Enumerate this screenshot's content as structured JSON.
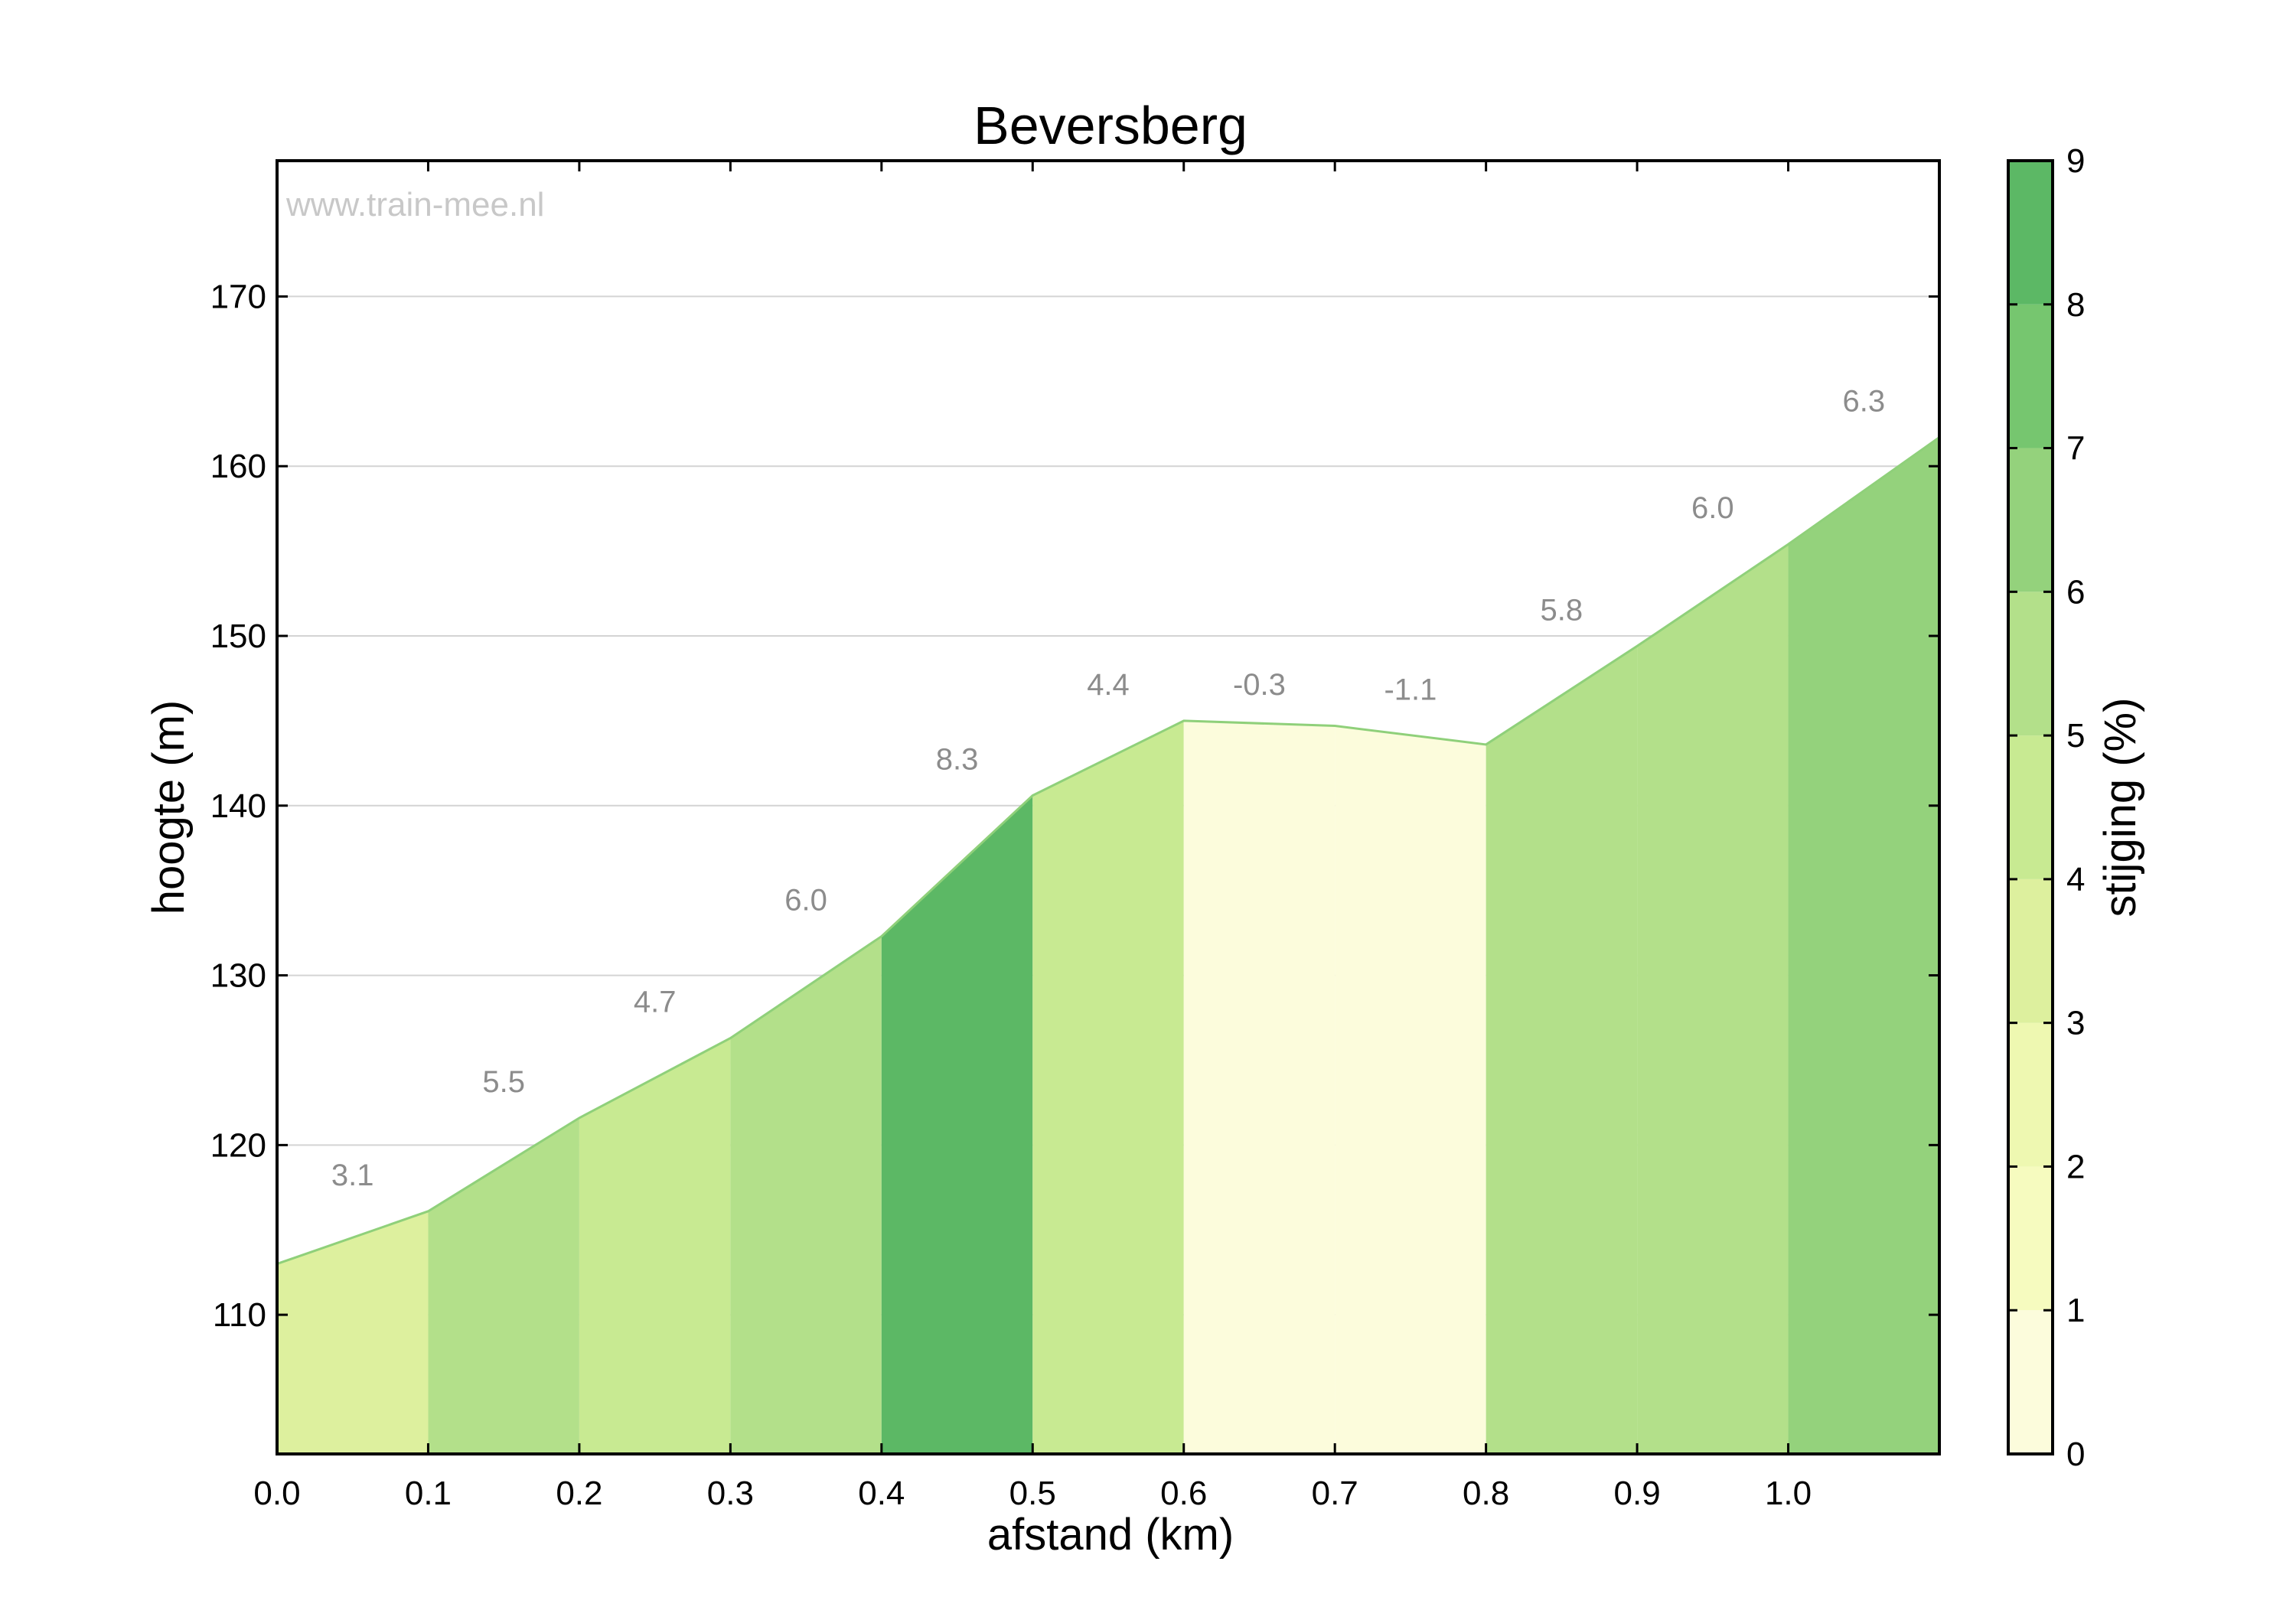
{
  "chart_data": {
    "type": "area",
    "title": "Beversberg",
    "watermark": "www.train-mee.nl",
    "xlabel": "afstand (km)",
    "ylabel": "hoogte (m)",
    "xlim": [
      0.0,
      1.1
    ],
    "ylim": [
      101.8,
      178
    ],
    "x_ticks": [
      "0.0",
      "0.1",
      "0.2",
      "0.3",
      "0.4",
      "0.5",
      "0.6",
      "0.7",
      "0.8",
      "0.9",
      "1.0"
    ],
    "y_ticks": [
      "110",
      "120",
      "130",
      "140",
      "150",
      "160",
      "170"
    ],
    "grid": "horizontal",
    "profile": {
      "x": [
        0.0,
        0.1,
        0.2,
        0.3,
        0.4,
        0.5,
        0.6,
        0.7,
        0.8,
        0.9,
        1.0,
        1.1
      ],
      "y": [
        113.0,
        116.1,
        121.6,
        126.3,
        132.3,
        140.6,
        145.0,
        144.7,
        143.6,
        149.4,
        155.4,
        161.7
      ]
    },
    "segments": [
      {
        "from": 0.0,
        "to": 0.1,
        "grade": "3.1",
        "color": "#ddf09e"
      },
      {
        "from": 0.1,
        "to": 0.2,
        "grade": "5.5",
        "color": "#b3e08a"
      },
      {
        "from": 0.2,
        "to": 0.3,
        "grade": "4.7",
        "color": "#c8ea92"
      },
      {
        "from": 0.3,
        "to": 0.4,
        "grade": "6.0",
        "color": "#b3e08a"
      },
      {
        "from": 0.4,
        "to": 0.5,
        "grade": "8.3",
        "color": "#5cb865"
      },
      {
        "from": 0.5,
        "to": 0.6,
        "grade": "4.4",
        "color": "#c8ea92"
      },
      {
        "from": 0.6,
        "to": 0.7,
        "grade": "-0.3",
        "color": "#fcfcdc"
      },
      {
        "from": 0.7,
        "to": 0.8,
        "grade": "-1.1",
        "color": "#fcfcdc"
      },
      {
        "from": 0.8,
        "to": 0.9,
        "grade": "5.8",
        "color": "#b3e08a"
      },
      {
        "from": 0.9,
        "to": 1.0,
        "grade": "6.0",
        "color": "#b3e08a"
      },
      {
        "from": 1.0,
        "to": 1.1,
        "grade": "6.3",
        "color": "#94d27c"
      }
    ],
    "outline_color": "#8fd07a",
    "colorbar": {
      "label": "stijging (%)",
      "range": [
        0,
        9
      ],
      "ticks": [
        "0",
        "1",
        "2",
        "3",
        "4",
        "5",
        "6",
        "7",
        "8",
        "9"
      ],
      "colors": [
        "#fcfcdc",
        "#f6fbbf",
        "#eef8b1",
        "#ddf09e",
        "#c8ea92",
        "#b3e08a",
        "#94d27c",
        "#76c66f",
        "#5cb865"
      ]
    }
  }
}
